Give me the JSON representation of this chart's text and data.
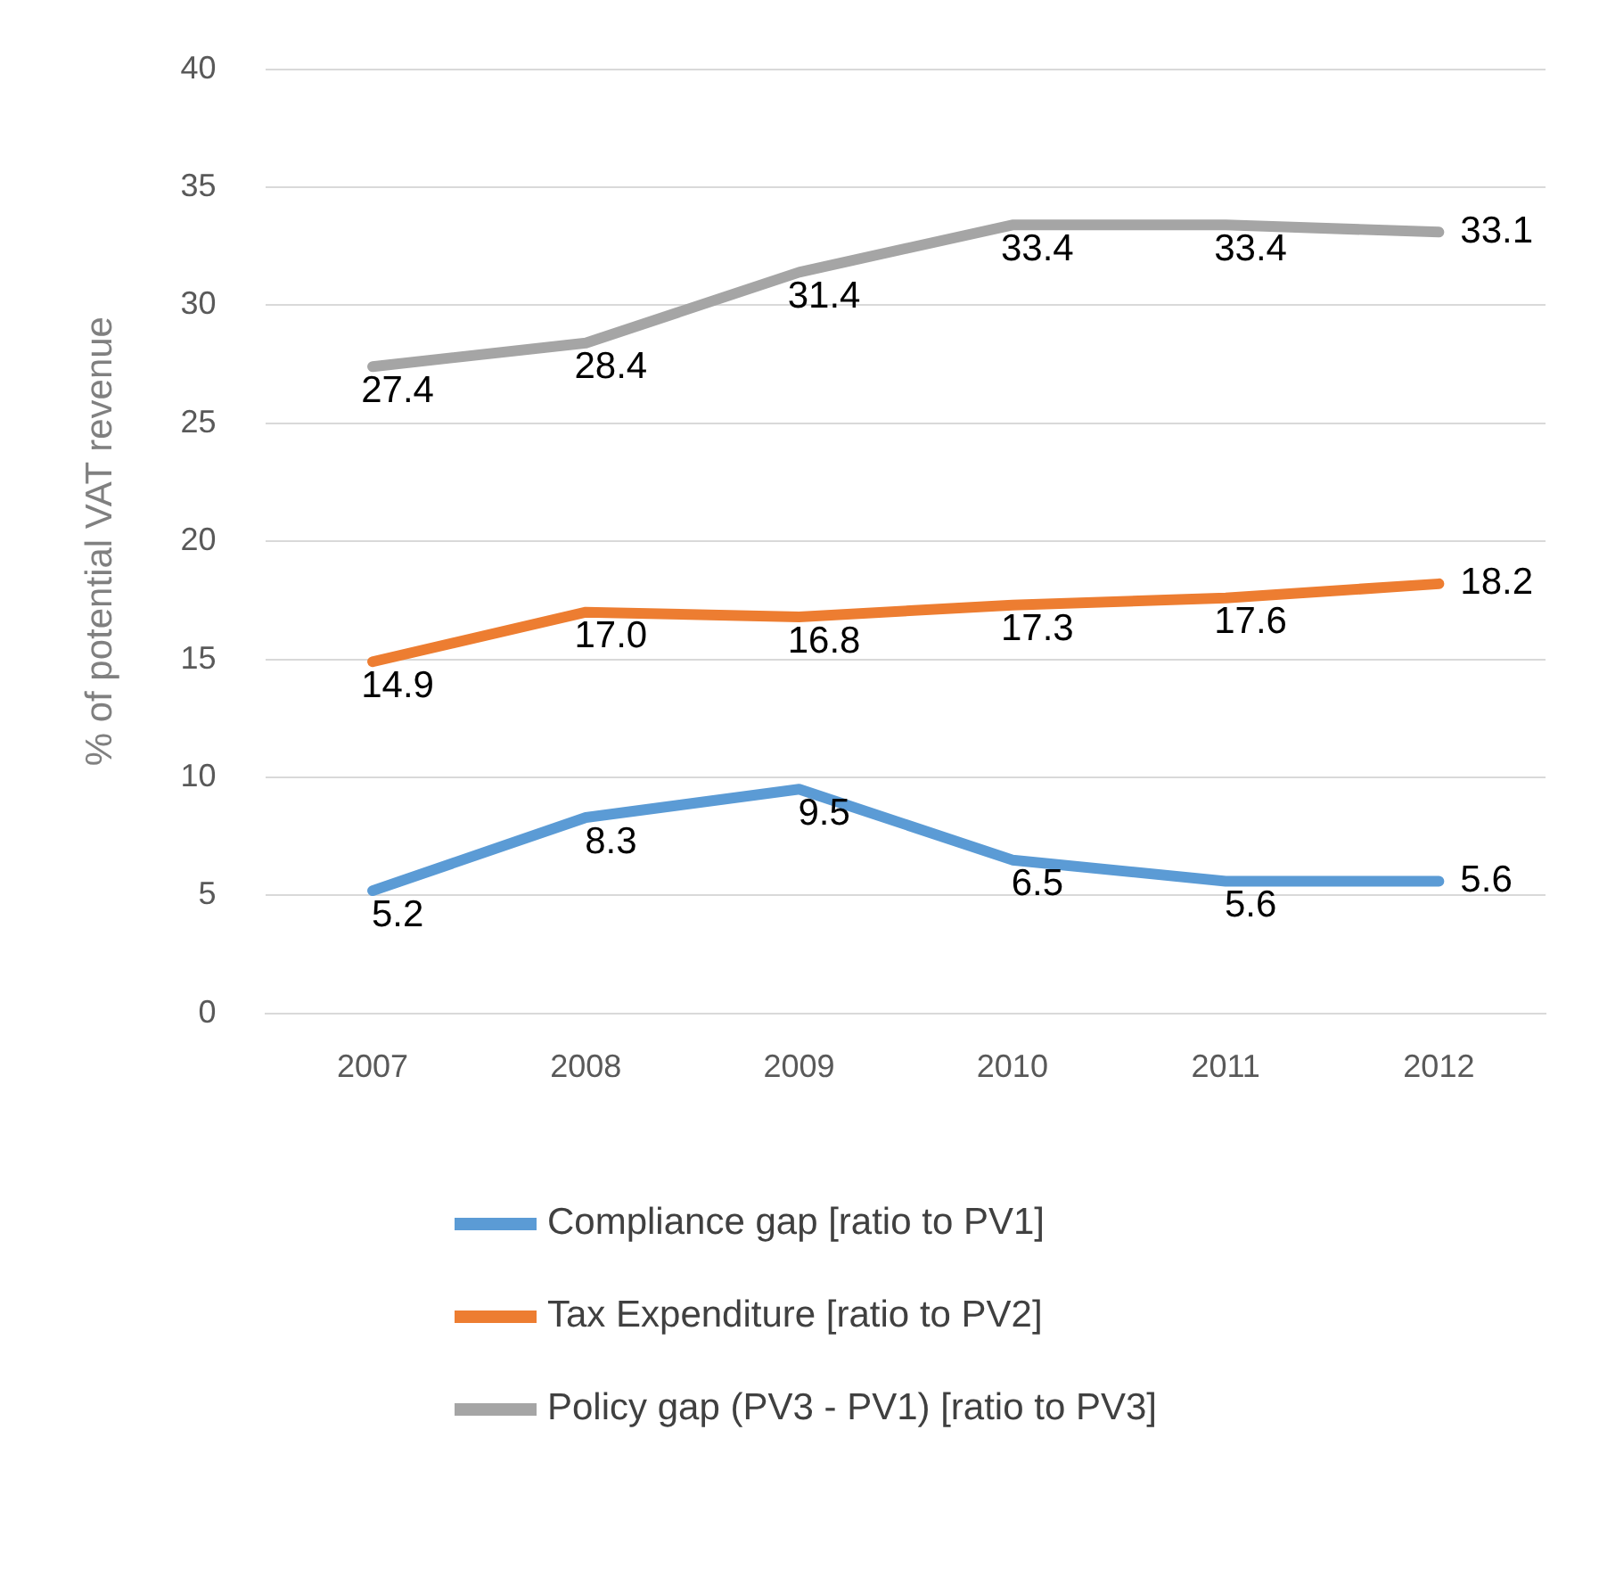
{
  "chart_data": {
    "type": "line",
    "ylabel": "% of potential VAT revenue",
    "categories": [
      "2007",
      "2008",
      "2009",
      "2010",
      "2011",
      "2012"
    ],
    "series": [
      {
        "name": "Compliance gap [ratio to PV1]",
        "color": "#5b9bd5",
        "values": [
          5.2,
          8.3,
          9.5,
          6.5,
          5.6,
          5.6
        ],
        "value_labels": [
          "5.2",
          "8.3",
          "9.5",
          "6.5",
          "5.6",
          "5.6"
        ]
      },
      {
        "name": "Tax Expenditure [ratio to PV2]",
        "color": "#ed7d31",
        "values": [
          14.9,
          17.0,
          16.8,
          17.3,
          17.6,
          18.2
        ],
        "value_labels": [
          "14.9",
          "17.0",
          "16.8",
          "17.3",
          "17.6",
          "18.2"
        ]
      },
      {
        "name": "Policy gap (PV3 - PV1) [ratio to PV3]",
        "color": "#a5a5a5",
        "values": [
          27.4,
          28.4,
          31.4,
          33.4,
          33.4,
          33.1
        ],
        "value_labels": [
          "27.4",
          "28.4",
          "31.4",
          "33.4",
          "33.4",
          "33.1"
        ]
      }
    ],
    "ylim": [
      0,
      40
    ],
    "yticks": [
      0,
      5,
      10,
      15,
      20,
      25,
      30,
      35,
      40
    ],
    "grid": "y",
    "legend": "bottom",
    "marker": "none",
    "line_style": "solid"
  }
}
